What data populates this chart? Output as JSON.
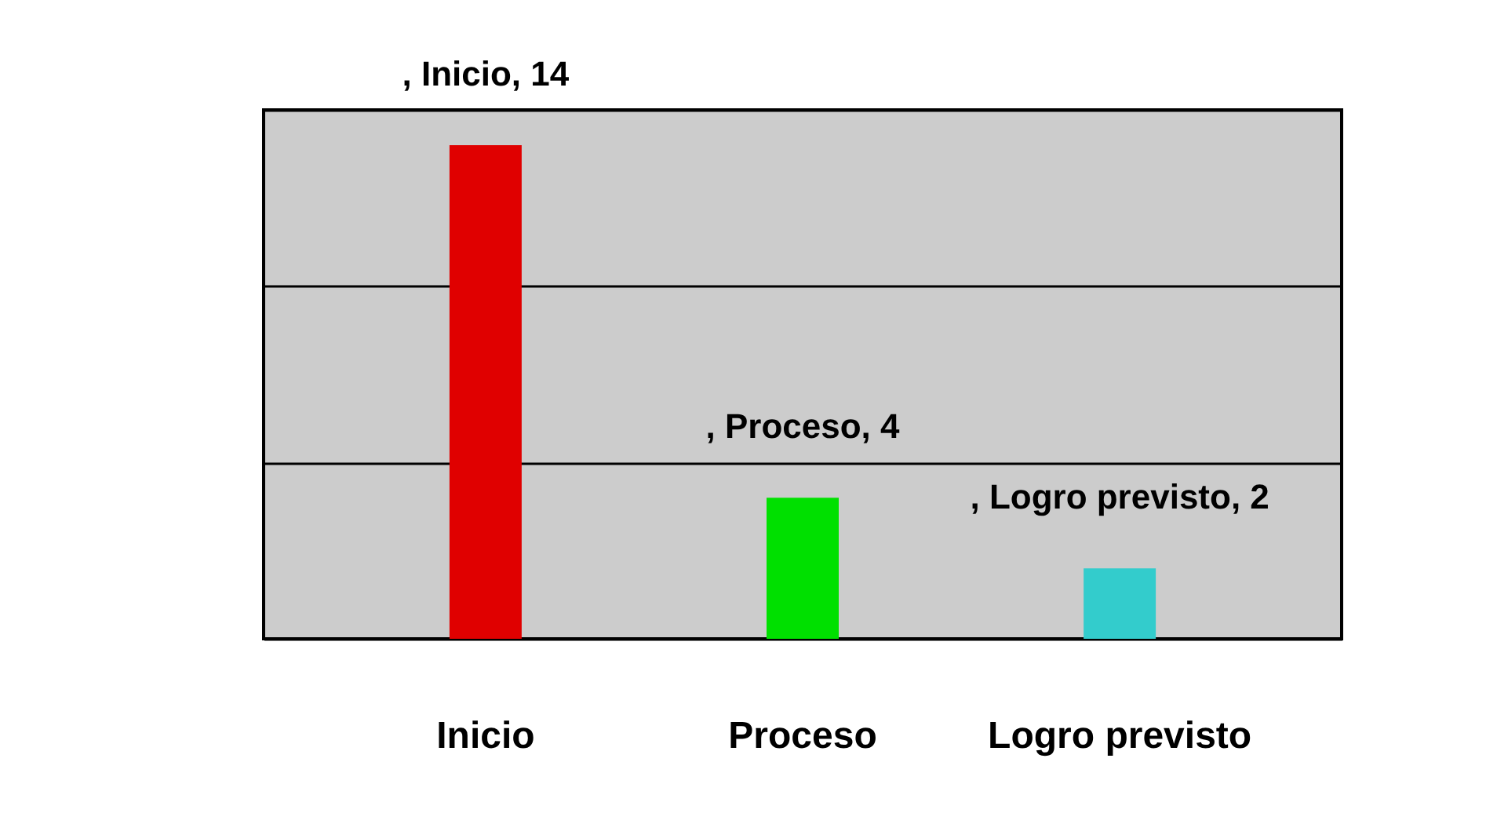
{
  "chart_data": {
    "type": "bar",
    "categories": [
      "Inicio",
      "Proceso",
      "Logro previsto"
    ],
    "values": [
      14,
      4,
      2
    ],
    "colors": [
      "#e00000",
      "#00e000",
      "#33cccc"
    ],
    "value_labels": [
      ", Inicio, 14",
      ", Proceso, 4",
      ", Logro previsto, 2"
    ],
    "ylim": [
      0,
      15
    ],
    "yticks": [
      {
        "value": 0,
        "label": null
      },
      {
        "value": 5,
        "label": null
      },
      {
        "value": 10,
        "label": null
      },
      {
        "value": 15,
        "label": null
      }
    ],
    "grid": "y",
    "tick_labels": "x",
    "legend": false
  }
}
